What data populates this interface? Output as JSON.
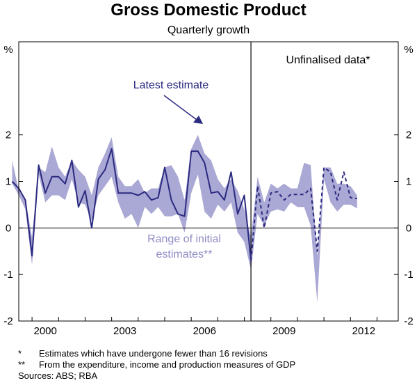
{
  "chart_data": {
    "type": "line",
    "title": "Gross Domestic Product",
    "subtitle": "Quarterly growth",
    "ylabel_left": "%",
    "ylabel_right": "%",
    "ylim": [
      -2,
      4
    ],
    "yticks": [
      -2,
      -1,
      0,
      1,
      2
    ],
    "xlim": [
      1999.5,
      2013.8
    ],
    "xticks": [
      2000,
      2003,
      2006,
      2009,
      2012
    ],
    "xtick_labels": [
      "2000",
      "2003",
      "2006",
      "2009",
      "2012"
    ],
    "divider_x": 2008.25,
    "annotations": {
      "latest_estimate": "Latest estimate",
      "range_line1": "Range of initial",
      "range_line2": "estimates**",
      "unfinalised": "Unfinalised data*"
    },
    "series": [
      {
        "name": "Latest estimate",
        "style": "solid",
        "color": "#2b2a80",
        "x": [
          1999.25,
          1999.5,
          1999.75,
          2000,
          2000.25,
          2000.5,
          2000.75,
          2001,
          2001.25,
          2001.5,
          2001.75,
          2002,
          2002.25,
          2002.5,
          2002.75,
          2003,
          2003.25,
          2003.5,
          2003.75,
          2004,
          2004.25,
          2004.5,
          2004.75,
          2005,
          2005.25,
          2005.5,
          2005.75,
          2006,
          2006.25,
          2006.5,
          2006.75,
          2007,
          2007.25,
          2007.5,
          2007.75,
          2008,
          2008.25
        ],
        "values": [
          1.0,
          0.85,
          0.6,
          -0.6,
          1.35,
          0.75,
          1.1,
          1.1,
          0.95,
          1.45,
          0.45,
          0.8,
          0.0,
          1.05,
          1.25,
          1.7,
          0.75,
          0.75,
          0.75,
          0.7,
          0.78,
          0.6,
          0.65,
          1.3,
          0.6,
          0.3,
          0.25,
          1.65,
          1.65,
          1.4,
          0.75,
          0.78,
          0.6,
          1.2,
          0.3,
          0.7,
          -0.7
        ]
      },
      {
        "name": "Latest estimate (unfinalised)",
        "style": "dashed",
        "color": "#2b2a80",
        "x": [
          2008.25,
          2008.5,
          2008.75,
          2009,
          2009.25,
          2009.5,
          2009.75,
          2010,
          2010.25,
          2010.5,
          2010.75,
          2011,
          2011.25,
          2011.5,
          2011.75,
          2012,
          2012.25
        ],
        "values": [
          -0.7,
          0.9,
          0.0,
          0.75,
          0.78,
          0.6,
          0.72,
          0.72,
          0.72,
          0.85,
          -0.5,
          1.3,
          1.2,
          0.6,
          1.2,
          0.65,
          0.63
        ]
      },
      {
        "name": "Range of initial estimates",
        "type": "area",
        "color": "#aaa8d4",
        "x": [
          1999.25,
          1999.5,
          1999.75,
          2000,
          2000.25,
          2000.5,
          2000.75,
          2001,
          2001.25,
          2001.5,
          2001.75,
          2002,
          2002.25,
          2002.5,
          2002.75,
          2003,
          2003.25,
          2003.5,
          2003.75,
          2004,
          2004.25,
          2004.5,
          2004.75,
          2005,
          2005.25,
          2005.5,
          2005.75,
          2006,
          2006.25,
          2006.5,
          2006.75,
          2007,
          2007.25,
          2007.5,
          2007.75,
          2008,
          2008.25,
          2008.5,
          2008.75,
          2009,
          2009.25,
          2009.5,
          2009.75,
          2010,
          2010.25,
          2010.5,
          2010.75,
          2011,
          2011.25,
          2011.5,
          2011.75,
          2012,
          2012.25
        ],
        "low": [
          0.95,
          0.7,
          0.4,
          -0.8,
          1.15,
          0.55,
          0.7,
          0.7,
          0.6,
          1.05,
          0.55,
          0.5,
          0.15,
          0.7,
          0.9,
          1.1,
          0.55,
          0.2,
          0.3,
          0.0,
          0.45,
          0.3,
          0.45,
          0.25,
          0.25,
          0.3,
          -0.1,
          0.75,
          1.15,
          0.35,
          0.2,
          0.5,
          0.35,
          0.55,
          -0.1,
          -0.3,
          -0.9,
          0.3,
          0.05,
          0.35,
          0.4,
          0.35,
          0.55,
          0.45,
          0.45,
          0.05,
          -1.6,
          1.05,
          0.55,
          0.35,
          0.5,
          0.5,
          0.42
        ],
        "high": [
          1.45,
          0.8,
          0.6,
          -0.2,
          1.3,
          1.2,
          1.75,
          1.3,
          1.1,
          1.45,
          1.25,
          1.1,
          0.7,
          1.3,
          1.6,
          1.95,
          1.1,
          0.9,
          0.9,
          1.05,
          0.75,
          0.85,
          0.85,
          1.3,
          1.35,
          1.1,
          0.6,
          1.7,
          2.0,
          1.6,
          1.45,
          1.05,
          0.85,
          1.05,
          0.8,
          0.4,
          -0.2,
          1.1,
          0.55,
          0.95,
          0.85,
          0.95,
          0.85,
          0.85,
          1.4,
          1.35,
          -0.6,
          1.3,
          1.3,
          0.95,
          0.95,
          0.9,
          0.7
        ]
      }
    ]
  },
  "footnotes": [
    {
      "mark": "*",
      "text": "Estimates which have undergone fewer than 16 revisions"
    },
    {
      "mark": "**",
      "text": "From the expenditure, income and production measures of GDP"
    }
  ],
  "sources": "Sources: ABS; RBA"
}
